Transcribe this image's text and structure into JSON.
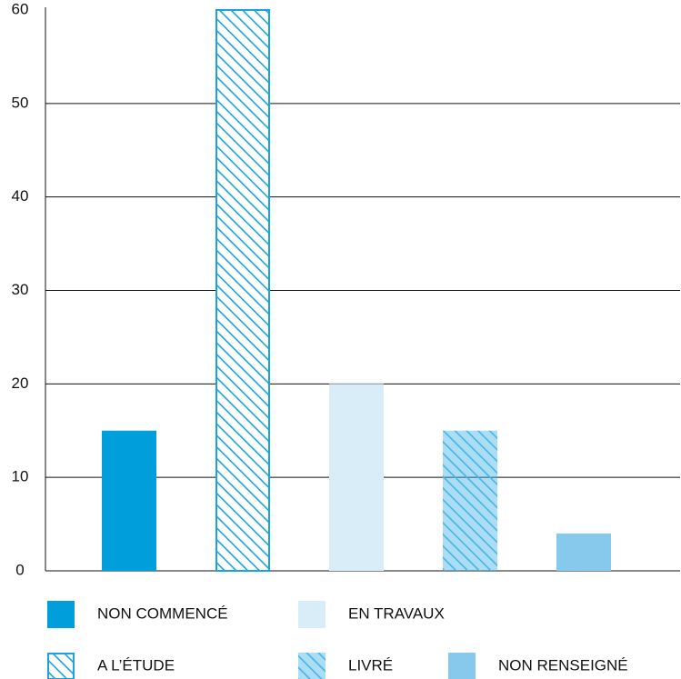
{
  "chart_data": {
    "type": "bar",
    "categories": [
      "NON COMMENCÉ",
      "A L’ÉTUDE",
      "EN TRAVAUX",
      "LIVRÉ",
      "NON RENSEIGNÉ"
    ],
    "values": [
      15,
      60,
      20,
      15,
      4
    ],
    "colors": [
      "#009fdb",
      "#1aa3de",
      "#d9edf8",
      "#45b5e6",
      "#86c9ec"
    ],
    "styles": [
      "solid",
      "hatch-outline",
      "solid",
      "hatch",
      "solid"
    ],
    "ylim": [
      0,
      60
    ],
    "yticks": [
      0,
      10,
      20,
      30,
      40,
      50,
      60
    ],
    "grid": true
  }
}
